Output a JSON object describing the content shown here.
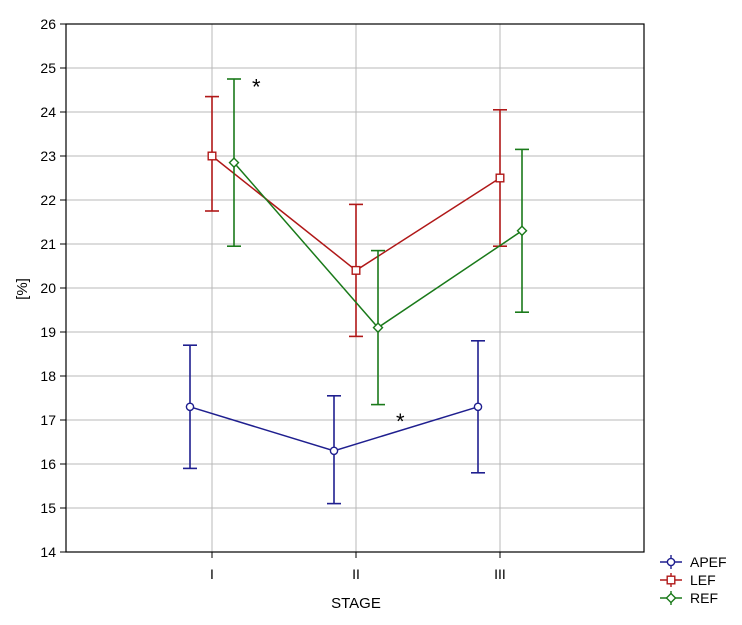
{
  "chart_data": {
    "type": "line",
    "title": "",
    "xlabel": "STAGE",
    "ylabel": "[%]",
    "categories": [
      "I",
      "II",
      "III"
    ],
    "ylim": [
      14,
      26
    ],
    "yticks": [
      14,
      15,
      16,
      17,
      18,
      19,
      20,
      21,
      22,
      23,
      24,
      25,
      26
    ],
    "grid": true,
    "legend_position": "bottom-right",
    "series": [
      {
        "name": "APEF",
        "color": "#1f1f8f",
        "marker": "circle",
        "values": [
          17.3,
          16.3,
          17.3
        ],
        "err_low": [
          15.9,
          15.1,
          15.8
        ],
        "err_high": [
          18.7,
          17.55,
          18.8
        ]
      },
      {
        "name": "LEF",
        "color": "#b01818",
        "marker": "square",
        "values": [
          23.0,
          20.4,
          22.5
        ],
        "err_low": [
          21.75,
          18.9,
          20.95
        ],
        "err_high": [
          24.35,
          21.9,
          24.05
        ]
      },
      {
        "name": "REF",
        "color": "#1a7a1a",
        "marker": "diamond",
        "values": [
          22.85,
          19.1,
          21.3
        ],
        "err_low": [
          20.95,
          17.35,
          19.45
        ],
        "err_high": [
          24.75,
          20.85,
          23.15
        ]
      }
    ],
    "annotations": [
      {
        "text": "*",
        "category": 0,
        "y": 24.6,
        "near_series": "REF"
      },
      {
        "text": "*",
        "category": 1,
        "y": 17.0,
        "near_series": "REF"
      }
    ]
  }
}
